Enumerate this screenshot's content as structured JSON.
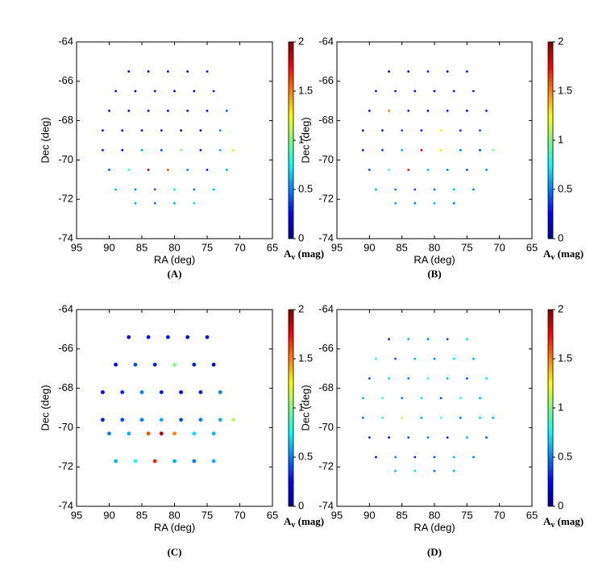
{
  "chart_data": [
    {
      "type": "scatter",
      "caption": "(A)",
      "xlabel": "RA (deg)",
      "ylabel": "Dec (deg)",
      "xlim": [
        95,
        65
      ],
      "ylim": [
        -74,
        -64
      ],
      "xticks": [
        95,
        90,
        85,
        80,
        75,
        70,
        65
      ],
      "yticks": [
        -74,
        -72,
        -70,
        -68,
        -66,
        -64
      ],
      "colormap": "jet",
      "colorbar": {
        "lim": [
          0,
          2
        ],
        "ticks": [
          0,
          0.5,
          1,
          1.5,
          2
        ],
        "label": {
          "symbol": "A",
          "subscript": "v",
          "unit": " (mag)"
        }
      },
      "x": [
        87,
        84,
        81,
        78,
        75,
        89,
        86,
        83,
        80,
        77,
        74,
        90,
        87,
        84,
        81,
        78,
        75,
        72,
        91,
        88,
        85,
        82,
        79,
        76,
        73,
        91,
        88,
        85,
        82,
        79,
        76,
        73,
        71,
        90,
        87,
        84,
        81,
        78,
        75,
        72,
        89,
        86,
        83,
        80,
        77,
        74,
        86,
        83,
        80,
        77
      ],
      "y": [
        -65.5,
        -65.5,
        -65.5,
        -65.5,
        -65.5,
        -66.5,
        -66.5,
        -66.5,
        -66.5,
        -66.5,
        -66.5,
        -67.5,
        -67.5,
        -67.5,
        -67.5,
        -67.5,
        -67.5,
        -67.5,
        -68.5,
        -68.5,
        -68.5,
        -68.5,
        -68.5,
        -68.5,
        -68.5,
        -69.5,
        -69.5,
        -69.5,
        -69.5,
        -69.5,
        -69.5,
        -69.5,
        -69.5,
        -70.5,
        -70.5,
        -70.5,
        -70.5,
        -70.5,
        -70.5,
        -70.5,
        -71.5,
        -71.5,
        -71.5,
        -71.5,
        -71.5,
        -71.5,
        -72.2,
        -72.2,
        -72.2,
        -72.2
      ],
      "values": [
        0.2,
        0.1,
        0.2,
        0.1,
        0.3,
        0.2,
        0.1,
        0.2,
        0.1,
        0.2,
        0.3,
        0.1,
        0.2,
        0.1,
        0.2,
        0.1,
        0.2,
        0.4,
        0.2,
        0.1,
        0.2,
        0.3,
        0.2,
        0.1,
        0.5,
        0.3,
        0.2,
        0.6,
        0.4,
        1.0,
        0.3,
        0.6,
        1.1,
        0.4,
        0.8,
        1.9,
        1.6,
        0.5,
        0.3,
        0.6,
        0.6,
        0.5,
        0.4,
        0.7,
        0.5,
        0.6,
        0.6,
        0.5,
        0.6,
        0.7
      ]
    },
    {
      "type": "scatter",
      "caption": "(B)",
      "xlabel": "RA (deg)",
      "ylabel": "Dec (deg)",
      "xlim": [
        95,
        65
      ],
      "ylim": [
        -74,
        -64
      ],
      "xticks": [
        95,
        90,
        85,
        80,
        75,
        70,
        65
      ],
      "yticks": [
        -74,
        -72,
        -70,
        -68,
        -66,
        -64
      ],
      "colormap": "jet",
      "colorbar": {
        "lim": [
          0,
          2
        ],
        "ticks": [
          0,
          0.5,
          1,
          1.5,
          2
        ],
        "label": {
          "symbol": "A",
          "subscript": "v",
          "unit": " (mag)"
        }
      },
      "x": [
        87,
        84,
        81,
        78,
        75,
        89,
        86,
        83,
        80,
        77,
        74,
        90,
        87,
        84,
        81,
        78,
        75,
        72,
        91,
        88,
        85,
        82,
        79,
        76,
        73,
        91,
        88,
        85,
        82,
        79,
        76,
        73,
        71,
        90,
        87,
        84,
        81,
        78,
        75,
        72,
        89,
        86,
        83,
        80,
        77,
        74,
        86,
        83,
        80,
        77
      ],
      "y": [
        -65.5,
        -65.5,
        -65.5,
        -65.5,
        -65.5,
        -66.5,
        -66.5,
        -66.5,
        -66.5,
        -66.5,
        -66.5,
        -67.5,
        -67.5,
        -67.5,
        -67.5,
        -67.5,
        -67.5,
        -67.5,
        -68.5,
        -68.5,
        -68.5,
        -68.5,
        -68.5,
        -68.5,
        -68.5,
        -69.5,
        -69.5,
        -69.5,
        -69.5,
        -69.5,
        -69.5,
        -69.5,
        -69.5,
        -70.5,
        -70.5,
        -70.5,
        -70.5,
        -70.5,
        -70.5,
        -70.5,
        -71.5,
        -71.5,
        -71.5,
        -71.5,
        -71.5,
        -71.5,
        -72.2,
        -72.2,
        -72.2,
        -72.2
      ],
      "values": [
        0.2,
        0.2,
        0.3,
        0.2,
        0.3,
        0.2,
        0.3,
        0.2,
        0.2,
        0.3,
        0.3,
        0.2,
        1.5,
        0.3,
        0.2,
        0.3,
        0.2,
        0.3,
        0.2,
        0.3,
        0.4,
        0.3,
        1.2,
        0.3,
        0.4,
        0.3,
        0.4,
        0.6,
        1.8,
        1.3,
        0.5,
        0.4,
        1.0,
        0.4,
        0.9,
        1.7,
        0.6,
        0.5,
        0.4,
        0.5,
        0.6,
        0.5,
        0.4,
        0.5,
        0.6,
        0.5,
        0.6,
        0.5,
        0.6,
        0.5
      ]
    },
    {
      "type": "scatter",
      "caption": "(C)",
      "xlabel": "RA (deg)",
      "ylabel": "Dec (deg)",
      "xlim": [
        95,
        65
      ],
      "ylim": [
        -74,
        -64
      ],
      "xticks": [
        95,
        90,
        85,
        80,
        75,
        70,
        65
      ],
      "yticks": [
        -74,
        -72,
        -70,
        -68,
        -66,
        -64
      ],
      "colormap": "jet",
      "colorbar": {
        "lim": [
          0,
          2
        ],
        "ticks": [
          0,
          0.5,
          1,
          1.5,
          2
        ],
        "label": {
          "symbol": "A",
          "subscript": "v",
          "unit": " (mag)"
        }
      },
      "x": [
        87,
        84,
        81,
        78,
        75,
        89,
        86,
        83,
        80,
        77,
        74,
        91,
        88,
        85,
        82,
        79,
        76,
        73,
        91,
        88,
        85,
        82,
        79,
        76,
        73,
        71,
        90,
        87,
        84,
        82,
        80,
        77,
        74,
        89,
        86,
        83,
        80,
        77,
        74
      ],
      "y": [
        -65.4,
        -65.4,
        -65.4,
        -65.4,
        -65.4,
        -66.8,
        -66.8,
        -66.8,
        -66.8,
        -66.8,
        -66.8,
        -68.2,
        -68.2,
        -68.2,
        -68.2,
        -68.2,
        -68.2,
        -68.2,
        -69.6,
        -69.6,
        -69.6,
        -69.6,
        -69.6,
        -69.6,
        -69.6,
        -69.6,
        -70.3,
        -70.3,
        -70.3,
        -70.3,
        -70.3,
        -70.3,
        -70.3,
        -71.7,
        -71.7,
        -71.7,
        -71.7,
        -71.7,
        -71.7
      ],
      "values": [
        0.2,
        0.2,
        0.3,
        0.2,
        0.3,
        0.2,
        0.4,
        0.3,
        1.0,
        0.3,
        0.2,
        0.2,
        0.3,
        0.5,
        0.3,
        0.2,
        0.3,
        0.5,
        0.3,
        0.4,
        0.5,
        0.6,
        0.4,
        0.5,
        0.6,
        1.1,
        0.5,
        0.6,
        1.6,
        1.9,
        1.5,
        0.7,
        0.6,
        0.6,
        0.8,
        1.7,
        0.6,
        0.5,
        0.6
      ]
    },
    {
      "type": "scatter",
      "caption": "(D)",
      "xlabel": "RA (deg)",
      "ylabel": "Dec (deg)",
      "xlim": [
        95,
        65
      ],
      "ylim": [
        -74,
        -64
      ],
      "xticks": [
        95,
        90,
        85,
        80,
        75,
        70,
        65
      ],
      "yticks": [
        -74,
        -72,
        -70,
        -68,
        -66,
        -64
      ],
      "colormap": "jet",
      "colorbar": {
        "lim": [
          0,
          2
        ],
        "ticks": [
          0,
          0.5,
          1,
          1.5,
          2
        ],
        "label": {
          "symbol": "A",
          "subscript": "v",
          "unit": " (mag)"
        }
      },
      "x": [
        87,
        84,
        81,
        78,
        75,
        89,
        86,
        83,
        80,
        77,
        74,
        90,
        87,
        84,
        81,
        78,
        75,
        72,
        91,
        88,
        85,
        82,
        79,
        76,
        73,
        91,
        88,
        85,
        82,
        79,
        76,
        73,
        71,
        90,
        87,
        84,
        81,
        78,
        75,
        72,
        89,
        86,
        83,
        80,
        77,
        74,
        86,
        83,
        80,
        77
      ],
      "y": [
        -65.5,
        -65.5,
        -65.5,
        -65.5,
        -65.5,
        -66.5,
        -66.5,
        -66.5,
        -66.5,
        -66.5,
        -66.5,
        -67.5,
        -67.5,
        -67.5,
        -67.5,
        -67.5,
        -67.5,
        -67.5,
        -68.5,
        -68.5,
        -68.5,
        -68.5,
        -68.5,
        -68.5,
        -68.5,
        -69.5,
        -69.5,
        -69.5,
        -69.5,
        -69.5,
        -69.5,
        -69.5,
        -69.5,
        -70.5,
        -70.5,
        -70.5,
        -70.5,
        -70.5,
        -70.5,
        -70.5,
        -71.5,
        -71.5,
        -71.5,
        -71.5,
        -71.5,
        -71.5,
        -72.2,
        -72.2,
        -72.2,
        -72.2
      ],
      "values": [
        0.3,
        0.6,
        0.5,
        0.4,
        0.7,
        0.8,
        0.4,
        0.6,
        0.5,
        0.7,
        0.6,
        0.4,
        0.7,
        0.5,
        0.8,
        0.6,
        0.4,
        0.7,
        0.6,
        0.9,
        0.5,
        0.7,
        0.4,
        0.8,
        0.6,
        0.5,
        0.8,
        1.1,
        0.6,
        0.9,
        0.5,
        0.7,
        0.6,
        0.3,
        0.2,
        0.4,
        0.5,
        0.3,
        0.6,
        0.4,
        0.2,
        0.5,
        0.3,
        0.4,
        0.6,
        0.5,
        0.6,
        0.7,
        0.5,
        0.6
      ]
    }
  ]
}
